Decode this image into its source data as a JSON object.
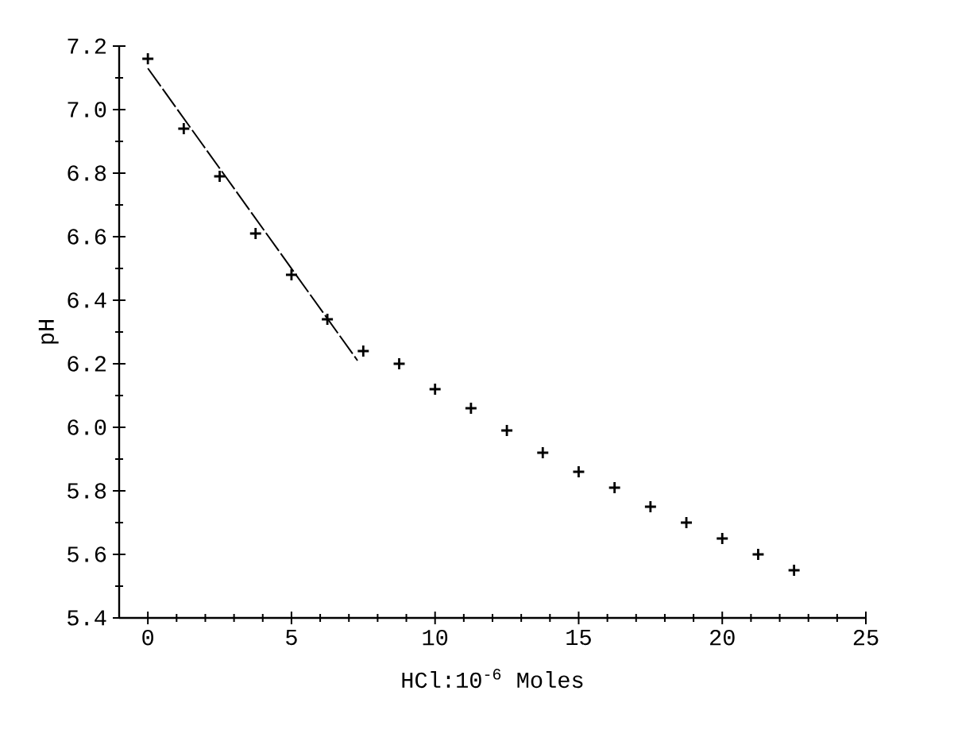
{
  "chart_data": {
    "type": "scatter",
    "xlabel": "HCl:10$^{-6}$ Moles",
    "ylabel": "pH",
    "x": [
      0,
      1.25,
      2.5,
      3.75,
      5,
      6.25,
      7.5,
      8.75,
      10,
      11.25,
      12.5,
      13.75,
      15,
      16.25,
      17.5,
      18.75,
      20,
      21.25,
      22.5
    ],
    "series": [
      {
        "color": "#000000",
        "marker": "cross",
        "values": [
          7.16,
          6.94,
          6.79,
          6.61,
          6.48,
          6.34,
          6.24,
          6.2,
          6.12,
          6.06,
          5.99,
          5.92,
          5.86,
          5.81,
          5.75,
          5.7,
          5.65,
          5.6,
          5.55
        ]
      },
      {
        "type": "line",
        "color": "#000000",
        "line_style": "dashed",
        "x": [
          0,
          7.3
        ],
        "values": [
          7.13,
          6.21
        ]
      }
    ],
    "xlim": [
      -1,
      25
    ],
    "ylim": [
      5.4,
      7.2
    ],
    "xticks": [
      0,
      5,
      10,
      15,
      20,
      25
    ],
    "yticks": [
      {
        "value": 5.4,
        "label": "5.4"
      },
      {
        "value": 5.6,
        "label": "5.6"
      },
      {
        "value": 5.8,
        "label": "5.8"
      },
      {
        "value": 6.0,
        "label": "6.0"
      },
      {
        "value": 6.2,
        "label": "6.2"
      },
      {
        "value": 6.4,
        "label": "6.4"
      },
      {
        "value": 6.6,
        "label": "6.6"
      },
      {
        "value": 6.8,
        "label": "6.8"
      },
      {
        "value": 7.0,
        "label": "7.0"
      },
      {
        "value": 7.2,
        "label": "7.2"
      }
    ]
  }
}
